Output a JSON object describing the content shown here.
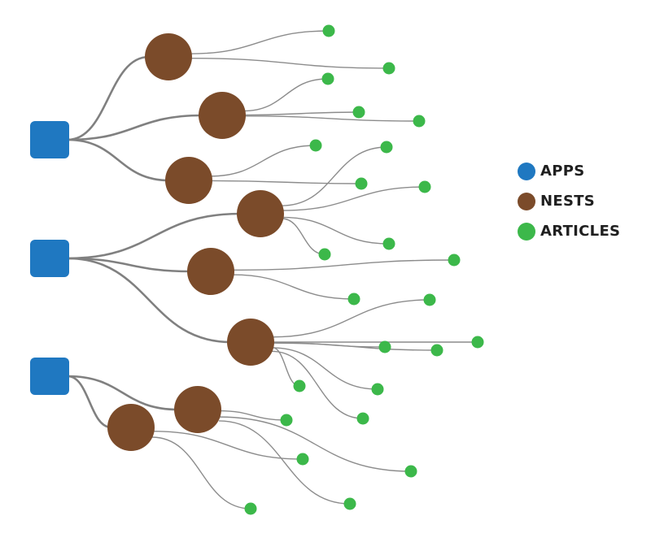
{
  "legend": [
    {
      "label": "APPS",
      "color": "#1f78c1"
    },
    {
      "label": "NESTS",
      "color": "#7b4b2a"
    },
    {
      "label": "ARTICLES",
      "color": "#3cb84a"
    }
  ],
  "colors": {
    "app": "#1f78c1",
    "nest": "#7b4b2a",
    "article": "#3cb84a",
    "link": "#8c8c8c"
  },
  "graph": {
    "node_types": [
      "app",
      "nest",
      "article"
    ],
    "apps": [
      "app-1",
      "app-2",
      "app-3"
    ],
    "nests": [
      {
        "id": "nest-1",
        "app": "app-1",
        "articles": 2
      },
      {
        "id": "nest-2",
        "app": "app-1",
        "articles": 3
      },
      {
        "id": "nest-3",
        "app": "app-1",
        "articles": 2
      },
      {
        "id": "nest-4",
        "app": "app-2",
        "articles": 4
      },
      {
        "id": "nest-5",
        "app": "app-2",
        "articles": 2
      },
      {
        "id": "nest-6",
        "app": "app-2",
        "articles": 7
      },
      {
        "id": "nest-7",
        "app": "app-3",
        "articles": 3
      },
      {
        "id": "nest-8",
        "app": "app-3",
        "articles": 2
      }
    ]
  }
}
